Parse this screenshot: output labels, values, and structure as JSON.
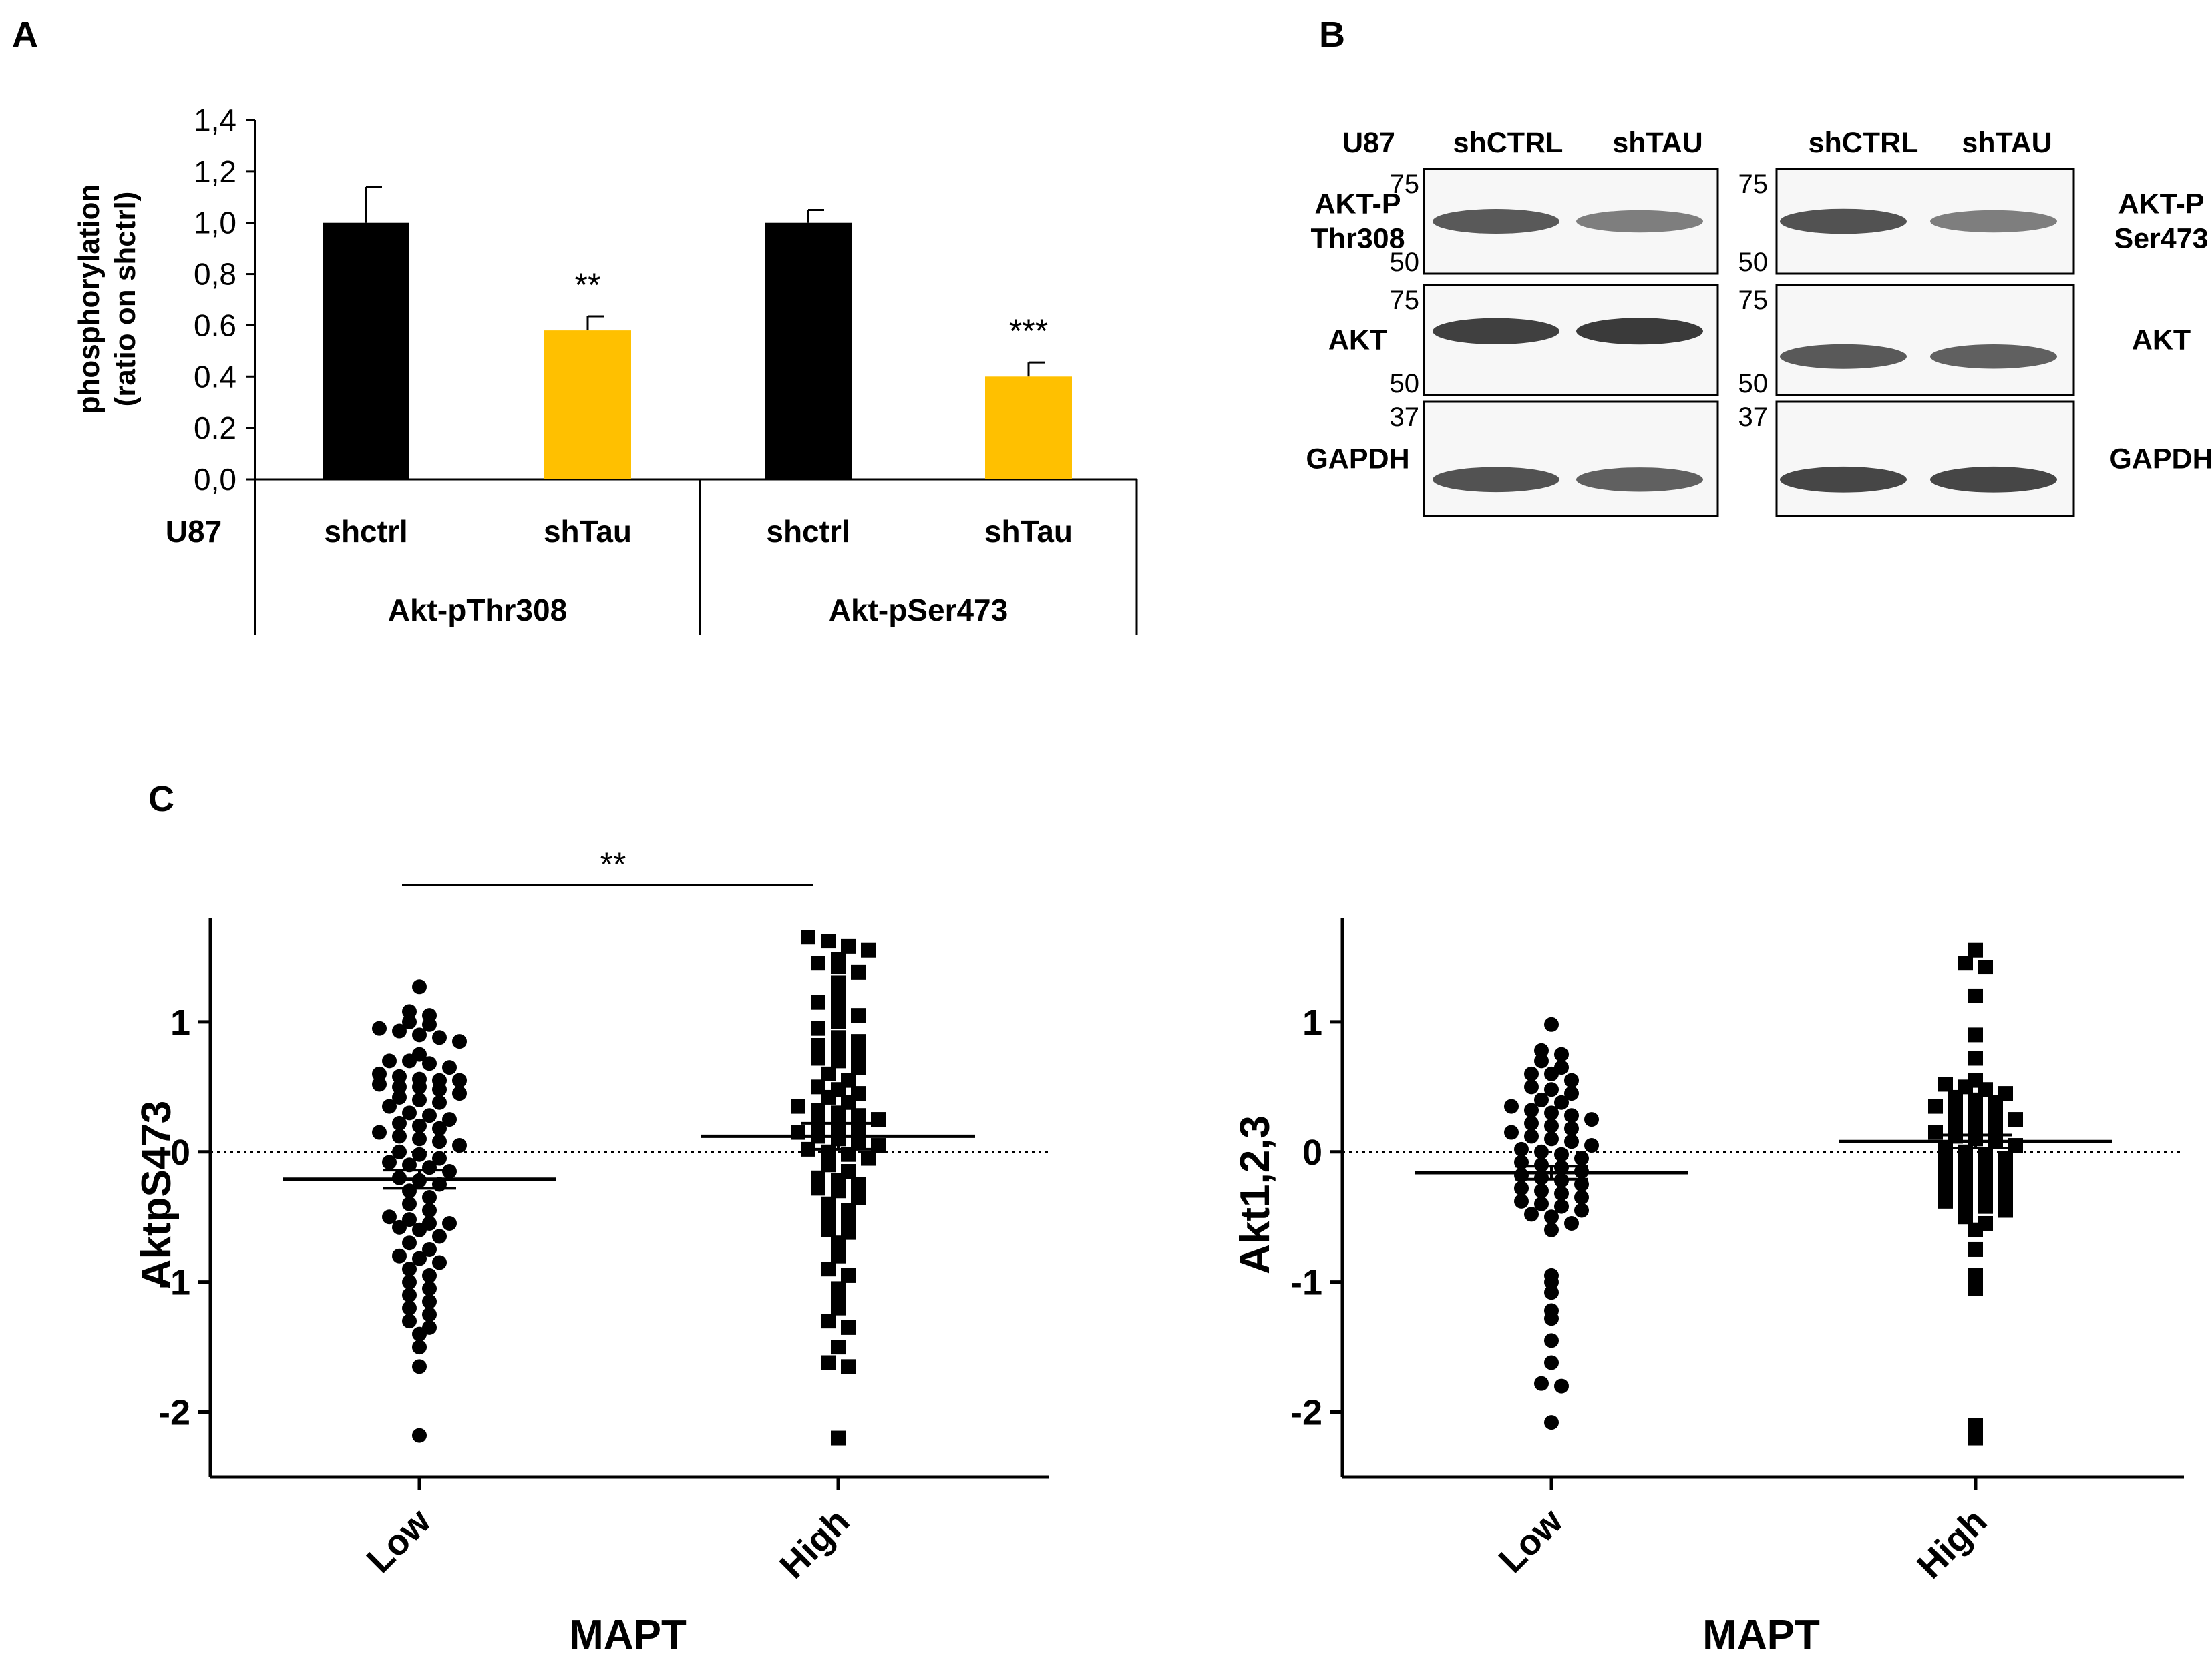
{
  "panel_labels": {
    "a": "A",
    "b": "B",
    "c": "C"
  },
  "colors": {
    "shctrl": "#000000",
    "shtau": "#ffc000",
    "ink": "#000000",
    "band": "#3a3a3a"
  },
  "chart_data": [
    {
      "type": "bar",
      "panel": "A",
      "ylabel_line1": "phosphorylation",
      "ylabel_line2": "(ratio on shctrl)",
      "ylim": [
        0,
        1.4
      ],
      "yticks": [
        0,
        0.2,
        0.4,
        0.6,
        0.8,
        1.0,
        1.2,
        1.4
      ],
      "ytick_labels": [
        "0,0",
        "0.2",
        "0.4",
        "0.6",
        "0,8",
        "1,0",
        "1,2",
        "1,4"
      ],
      "cell_line": "U87",
      "categories": [
        "shctrl",
        "shTau",
        "shctrl",
        "shTau"
      ],
      "values": [
        1.0,
        0.58,
        1.0,
        0.4
      ],
      "errors": [
        0.14,
        0.055,
        0.05,
        0.055
      ],
      "significance": [
        "",
        "**",
        "",
        "***"
      ],
      "groups": [
        "Akt-pThr308",
        "Akt-pSer473"
      ]
    },
    {
      "type": "scatter",
      "panel": "C-left",
      "ylabel": "AktpS473",
      "xlabel": "MAPT",
      "categories": [
        "Low",
        "High"
      ],
      "ylim": [
        -2.5,
        1.8
      ],
      "yticks": [
        -2,
        -1,
        0,
        1
      ],
      "ytick_labels": [
        "-2",
        "-1",
        "0",
        "1"
      ],
      "means": [
        -0.21,
        0.12
      ],
      "sem": [
        0.07,
        0.1
      ],
      "significance": "**",
      "low_values": [
        1.27,
        1.08,
        1.05,
        1.0,
        0.98,
        0.95,
        0.93,
        0.9,
        0.88,
        0.85,
        0.75,
        0.7,
        0.7,
        0.68,
        0.65,
        0.6,
        0.58,
        0.56,
        0.55,
        0.55,
        0.52,
        0.5,
        0.5,
        0.48,
        0.45,
        0.42,
        0.4,
        0.38,
        0.35,
        0.3,
        0.28,
        0.25,
        0.22,
        0.2,
        0.18,
        0.15,
        0.12,
        0.1,
        0.08,
        0.05,
        0.0,
        -0.02,
        -0.05,
        -0.08,
        -0.1,
        -0.12,
        -0.15,
        -0.2,
        -0.22,
        -0.25,
        -0.3,
        -0.35,
        -0.4,
        -0.45,
        -0.5,
        -0.52,
        -0.55,
        -0.55,
        -0.58,
        -0.6,
        -0.65,
        -0.7,
        -0.75,
        -0.8,
        -0.82,
        -0.85,
        -0.9,
        -0.95,
        -1.0,
        -1.05,
        -1.1,
        -1.15,
        -1.2,
        -1.25,
        -1.3,
        -1.35,
        -1.4,
        -1.5,
        -1.65,
        -2.18
      ],
      "high_values": [
        1.65,
        1.62,
        1.58,
        1.55,
        1.48,
        1.45,
        1.42,
        1.38,
        1.3,
        1.2,
        1.15,
        1.1,
        1.05,
        1.0,
        0.95,
        0.88,
        0.85,
        0.82,
        0.8,
        0.75,
        0.72,
        0.7,
        0.65,
        0.6,
        0.55,
        0.5,
        0.48,
        0.45,
        0.42,
        0.38,
        0.35,
        0.32,
        0.3,
        0.28,
        0.25,
        0.22,
        0.2,
        0.18,
        0.15,
        0.12,
        0.1,
        0.08,
        0.05,
        0.02,
        0.0,
        -0.02,
        -0.05,
        -0.1,
        -0.15,
        -0.2,
        -0.22,
        -0.25,
        -0.28,
        -0.3,
        -0.35,
        -0.4,
        -0.45,
        -0.5,
        -0.55,
        -0.6,
        -0.62,
        -0.7,
        -0.8,
        -0.9,
        -0.95,
        -1.05,
        -1.1,
        -1.2,
        -1.3,
        -1.35,
        -1.5,
        -1.62,
        -1.65,
        -2.2
      ]
    },
    {
      "type": "scatter",
      "panel": "C-right",
      "ylabel": "Akt1,2,3",
      "xlabel": "MAPT",
      "categories": [
        "Low",
        "High"
      ],
      "ylim": [
        -2.5,
        1.8
      ],
      "yticks": [
        -2,
        -1,
        0,
        1
      ],
      "ytick_labels": [
        "-2",
        "-1",
        "0",
        "1"
      ],
      "means": [
        -0.16,
        0.08
      ],
      "sem": [
        0.05,
        0.05
      ],
      "low_values": [
        0.98,
        0.78,
        0.75,
        0.7,
        0.65,
        0.6,
        0.6,
        0.55,
        0.5,
        0.48,
        0.45,
        0.4,
        0.38,
        0.35,
        0.32,
        0.3,
        0.28,
        0.25,
        0.22,
        0.2,
        0.18,
        0.15,
        0.12,
        0.1,
        0.08,
        0.05,
        0.02,
        0.0,
        -0.02,
        -0.05,
        -0.08,
        -0.1,
        -0.12,
        -0.15,
        -0.18,
        -0.2,
        -0.22,
        -0.25,
        -0.28,
        -0.3,
        -0.32,
        -0.35,
        -0.38,
        -0.4,
        -0.42,
        -0.45,
        -0.48,
        -0.5,
        -0.55,
        -0.6,
        -0.95,
        -1.0,
        -1.08,
        -1.22,
        -1.28,
        -1.45,
        -1.62,
        -1.78,
        -1.8,
        -2.08
      ],
      "high_values": [
        1.55,
        1.45,
        1.42,
        1.2,
        0.9,
        0.72,
        0.55,
        0.52,
        0.5,
        0.48,
        0.45,
        0.42,
        0.4,
        0.38,
        0.35,
        0.33,
        0.3,
        0.28,
        0.25,
        0.22,
        0.2,
        0.18,
        0.15,
        0.12,
        0.1,
        0.08,
        0.05,
        0.03,
        0.0,
        -0.02,
        -0.05,
        -0.08,
        -0.1,
        -0.12,
        -0.15,
        -0.18,
        -0.2,
        -0.22,
        -0.25,
        -0.28,
        -0.3,
        -0.32,
        -0.35,
        -0.38,
        -0.4,
        -0.42,
        -0.45,
        -0.5,
        -0.55,
        -0.6,
        -0.75,
        -0.95,
        -1.05,
        -2.1,
        -2.2
      ]
    }
  ],
  "blots": {
    "cell_line": "U87",
    "left_header": [
      "shCTRL",
      "shTAU"
    ],
    "right_header": [
      "shCTRL",
      "shTAU"
    ],
    "left_rows": [
      {
        "line1": "AKT-P",
        "line2": "Thr308",
        "mw_top": "75",
        "mw_bottom": "50",
        "intensity": [
          0.75,
          0.45
        ]
      },
      {
        "line1": "AKT",
        "line2": "",
        "mw_top": "75",
        "mw_bottom": "50",
        "intensity": [
          0.95,
          1.0
        ]
      },
      {
        "line1": "GAPDH",
        "line2": "",
        "mw_top": "37",
        "mw_bottom": "",
        "intensity": [
          0.8,
          0.7
        ]
      }
    ],
    "right_rows": [
      {
        "line1": "AKT-P",
        "line2": "Ser473",
        "mw_top": "75",
        "mw_bottom": "50",
        "intensity": [
          0.8,
          0.45
        ]
      },
      {
        "line1": "AKT",
        "line2": "",
        "mw_top": "75",
        "mw_bottom": "50",
        "intensity": [
          0.75,
          0.7
        ]
      },
      {
        "line1": "GAPDH",
        "line2": "",
        "mw_top": "37",
        "mw_bottom": "",
        "intensity": [
          0.9,
          0.9
        ]
      }
    ]
  }
}
